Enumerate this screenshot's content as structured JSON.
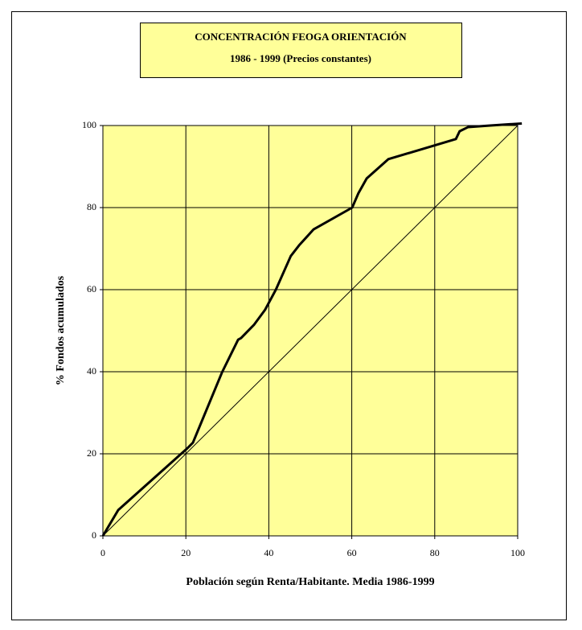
{
  "chart_data": {
    "type": "line",
    "title": "CONCENTRACIÓN  FEOGA ORIENTACIÓN",
    "subtitle": "1986 - 1999 (Precios constantes)",
    "x_label": "Población según Renta/Habitante. Media 1986-1999",
    "y_label": "% Fondos acumulados",
    "xlim": [
      0,
      100
    ],
    "ylim": [
      0,
      100
    ],
    "xticks": [
      0,
      20,
      40,
      60,
      80,
      100
    ],
    "yticks": [
      0,
      20,
      40,
      60,
      80,
      100
    ],
    "grid": true,
    "background": "#ffff99",
    "series": [
      {
        "color": "#000000",
        "width": 3,
        "x": [
          0,
          3.7,
          20.2,
          21.7,
          28.7,
          32.6,
          33.3,
          36.4,
          39.1,
          41.7,
          45.3,
          47.3,
          50.8,
          60.1,
          61.6,
          63.6,
          68.8,
          85.1,
          86,
          88,
          93.4,
          101
        ],
        "values": [
          0,
          6.3,
          21.2,
          22.7,
          39.8,
          47.8,
          48.2,
          51.4,
          55.1,
          60,
          68.2,
          70.8,
          74.7,
          80,
          83.5,
          87.1,
          91.8,
          96.7,
          98.6,
          99.6,
          100,
          100.5
        ]
      },
      {
        "color": "#000000",
        "width": 1,
        "x": [
          0,
          100
        ],
        "values": [
          0,
          100
        ]
      }
    ]
  }
}
